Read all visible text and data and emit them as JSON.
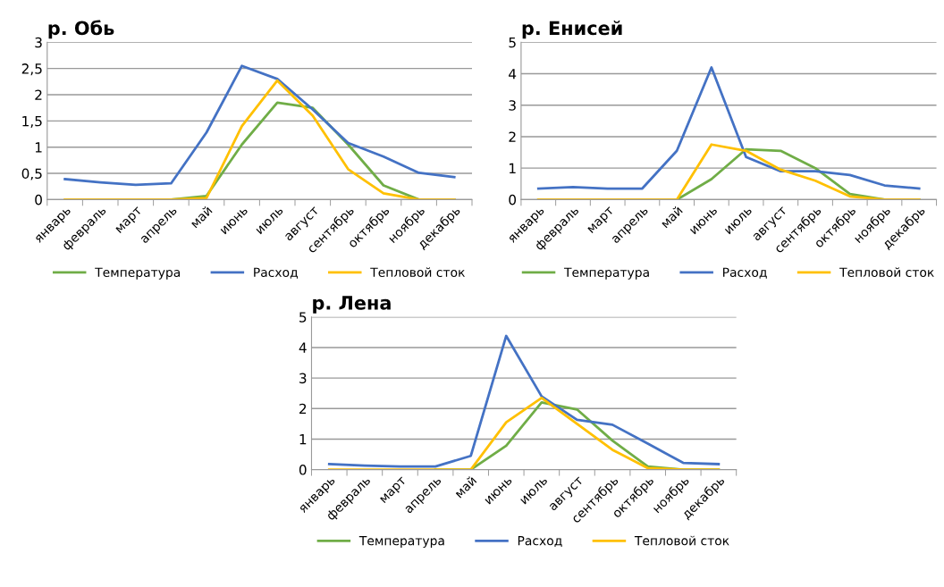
{
  "chart_data": [
    {
      "type": "line",
      "title": "р. Обь",
      "categories": [
        "январь",
        "февраль",
        "март",
        "апрель",
        "май",
        "июнь",
        "июль",
        "август",
        "сентябрь",
        "октябрь",
        "ноябрь",
        "декабрь"
      ],
      "series": [
        {
          "name": "Температура",
          "color": "#70ad47",
          "values": [
            null,
            null,
            0,
            0,
            0.07,
            1.05,
            1.85,
            1.75,
            1.05,
            0.27,
            0,
            0
          ]
        },
        {
          "name": "Расход",
          "color": "#4472c4",
          "values": [
            0.39,
            0.33,
            0.28,
            0.31,
            1.28,
            2.55,
            2.3,
            1.72,
            1.08,
            0.82,
            0.51,
            0.43
          ]
        },
        {
          "name": "Тепловой сток",
          "color": "#ffc000",
          "values": [
            0,
            0,
            0,
            0,
            0.03,
            1.4,
            2.27,
            1.6,
            0.58,
            0.12,
            0,
            0
          ]
        }
      ],
      "ylim": [
        0,
        3
      ],
      "yticks": [
        0,
        {
          "value": 0.5,
          "label": "0,5"
        },
        1,
        {
          "value": 1.5,
          "label": "1,5"
        },
        2,
        {
          "value": 2.5,
          "label": "2,5"
        },
        3
      ],
      "grid": "y",
      "legend": "bottom",
      "marker": "none",
      "line_style": "solid"
    },
    {
      "type": "line",
      "title": "р. Енисей",
      "categories": [
        "январь",
        "февраль",
        "март",
        "апрель",
        "май",
        "июнь",
        "июль",
        "август",
        "сентябрь",
        "октябрь",
        "ноябрь",
        "декабрь"
      ],
      "series": [
        {
          "name": "Температура",
          "color": "#70ad47",
          "values": [
            0,
            0,
            0,
            0,
            0,
            0.65,
            1.6,
            1.55,
            1.0,
            0.18,
            0,
            0
          ]
        },
        {
          "name": "Расход",
          "color": "#4472c4",
          "values": [
            0.35,
            0.4,
            0.35,
            0.35,
            1.55,
            4.2,
            1.35,
            0.9,
            0.9,
            0.78,
            0.45,
            0.35
          ]
        },
        {
          "name": "Тепловой сток",
          "color": "#ffc000",
          "values": [
            0,
            0,
            0,
            0,
            0,
            1.75,
            1.55,
            0.95,
            0.6,
            0.1,
            0,
            0
          ]
        }
      ],
      "ylim": [
        0,
        5
      ],
      "yticks": [
        0,
        1,
        2,
        3,
        4,
        5
      ],
      "grid": "y",
      "legend": "bottom",
      "marker": "none",
      "line_style": "solid"
    },
    {
      "type": "line",
      "title": "р. Лена",
      "categories": [
        "январь",
        "февраль",
        "март",
        "апрель",
        "май",
        "июнь",
        "июль",
        "август",
        "сентябрь",
        "октябрь",
        "ноябрь",
        "декабрь"
      ],
      "series": [
        {
          "name": "Температура",
          "color": "#70ad47",
          "values": [
            null,
            null,
            null,
            0,
            0,
            0.78,
            2.2,
            1.97,
            0.95,
            0.1,
            0,
            0
          ]
        },
        {
          "name": "Расход",
          "color": "#4472c4",
          "values": [
            0.18,
            0.13,
            0.1,
            0.1,
            0.45,
            4.38,
            2.4,
            1.63,
            1.47,
            0.85,
            0.22,
            0.18
          ]
        },
        {
          "name": "Тепловой сток",
          "color": "#ffc000",
          "values": [
            0,
            0,
            0,
            0,
            0,
            1.55,
            2.35,
            1.5,
            0.65,
            0.05,
            0,
            0
          ]
        }
      ],
      "ylim": [
        0,
        5
      ],
      "yticks": [
        0,
        1,
        2,
        3,
        4,
        5
      ],
      "grid": "y",
      "legend": "bottom",
      "marker": "none",
      "line_style": "solid"
    }
  ]
}
